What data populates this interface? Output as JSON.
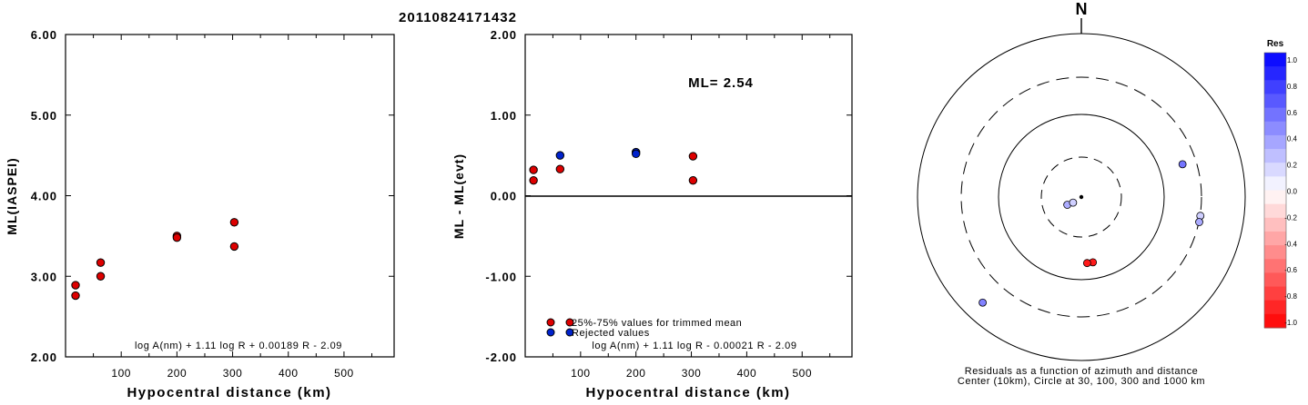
{
  "header": {
    "title": "20110824171432"
  },
  "chart_data": [
    {
      "id": "ml-vs-distance",
      "type": "scatter",
      "xlabel": "Hypocentral distance (km)",
      "ylabel": "ML(IASPEI)",
      "xlim": [
        0,
        590
      ],
      "ylim": [
        2.0,
        6.0
      ],
      "xticks": [
        "100",
        "200",
        "300",
        "400",
        "500"
      ],
      "yticks": [
        "2.00",
        "3.00",
        "4.00",
        "5.00",
        "6.00"
      ],
      "formula": "log A(nm) + 1.11 log R + 0.00189 R - 2.09",
      "series": [
        {
          "color": "#dd0000",
          "points": [
            [
              18,
              2.89
            ],
            [
              18,
              2.76
            ],
            [
              63,
              3.17
            ],
            [
              63,
              3.0
            ],
            [
              200,
              3.5
            ],
            [
              200,
              3.48
            ],
            [
              303,
              3.67
            ],
            [
              303,
              3.37
            ]
          ]
        }
      ]
    },
    {
      "id": "residual-vs-distance",
      "type": "scatter",
      "xlabel": "Hypocentral distance (km)",
      "ylabel": "ML - ML(evt)",
      "xlim": [
        0,
        590
      ],
      "ylim": [
        -2.0,
        2.0
      ],
      "xticks": [
        "100",
        "200",
        "300",
        "400",
        "500"
      ],
      "yticks": [
        "-2.00",
        "-1.00",
        "0.00",
        "1.00",
        "2.00"
      ],
      "annotation": "ML= 2.54",
      "formula": "log A(nm) + 1.11 log R - 0.00021 R - 2.09",
      "legend": [
        {
          "label": "25%-75% values for trimmed mean",
          "color": "#dd0000"
        },
        {
          "label": "Rejected values",
          "color": "#0022cc"
        }
      ],
      "series": [
        {
          "name": "25%-75% values for trimmed mean",
          "color": "#dd0000",
          "points": [
            [
              15,
              0.32
            ],
            [
              15,
              0.19
            ],
            [
              63,
              0.33
            ],
            [
              303,
              0.49
            ],
            [
              303,
              0.19
            ]
          ]
        },
        {
          "name": "Rejected values",
          "color": "#0022cc",
          "points": [
            [
              63,
              0.5
            ],
            [
              200,
              0.54
            ],
            [
              200,
              0.52
            ]
          ]
        }
      ]
    },
    {
      "id": "azimuth-map",
      "type": "scatter",
      "north_label": "N",
      "caption_1": "Residuals as a function of azimuth and distance",
      "caption_2": "Center (10km), Circle at 30, 100, 300 and 1000 km",
      "colorbar": {
        "title": "Res",
        "labels": [
          "1.0",
          "0.8",
          "0.6",
          "0.4",
          "0.2",
          "0.0",
          "-0.2",
          "-0.4",
          "-0.6",
          "-0.8",
          "-1.0"
        ],
        "max_color": "#0000ff",
        "zero_color": "#ffffff",
        "min_color": "#ff0000"
      },
      "stations": [
        {
          "azimuth_deg": 241,
          "distance_km": 18,
          "residual": 0.32
        },
        {
          "azimuth_deg": 236,
          "distance_km": 15,
          "residual": 0.19
        },
        {
          "azimuth_deg": 72,
          "distance_km": 200,
          "residual": 0.54
        },
        {
          "azimuth_deg": 99,
          "distance_km": 303,
          "residual": 0.19
        },
        {
          "azimuth_deg": 102,
          "distance_km": 303,
          "residual": 0.33
        },
        {
          "azimuth_deg": 170,
          "distance_km": 63,
          "residual": -0.9
        },
        {
          "azimuth_deg": 175,
          "distance_km": 63,
          "residual": -0.9
        },
        {
          "azimuth_deg": 223,
          "distance_km": 590,
          "residual": 0.49
        }
      ]
    }
  ]
}
